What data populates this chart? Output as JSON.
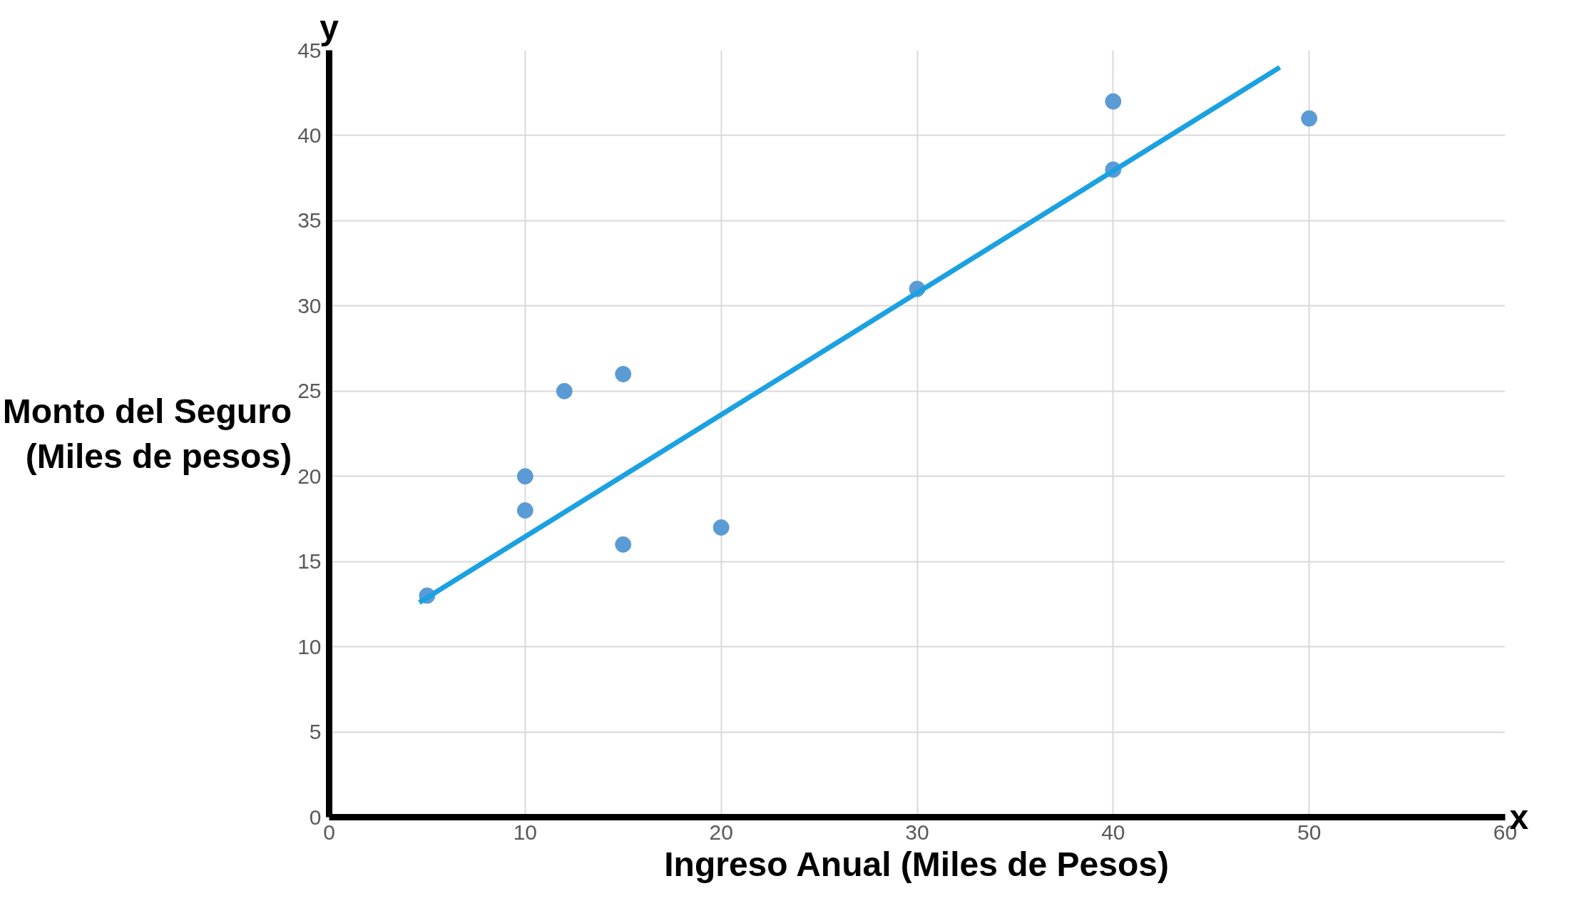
{
  "chart_data": {
    "type": "scatter",
    "xlabel": "Ingreso Anual (Miles de Pesos)",
    "ylabel": "Monto del Seguro (Miles de pesos)",
    "annotations": [
      "y",
      "x"
    ],
    "x": [
      5,
      10,
      10,
      12,
      15,
      15,
      20,
      30,
      40,
      40,
      50
    ],
    "series": [
      {
        "color": "#5b9bd5",
        "values": [
          13,
          20,
          18,
          25,
          26,
          16,
          17,
          31,
          42,
          38,
          41
        ]
      },
      {
        "type": "line",
        "marker": "none",
        "color": "#1ba1e2",
        "x": [
          4.6,
          48.5
        ],
        "values": [
          12.6,
          44
        ]
      }
    ],
    "xlim": [
      0,
      60
    ],
    "ylim": [
      0,
      45
    ],
    "xticks": [
      0,
      10,
      20,
      30,
      40,
      50,
      60
    ],
    "yticks": [
      0,
      5,
      10,
      15,
      20,
      25,
      30,
      35,
      40,
      45
    ],
    "grid": true,
    "marker": "circle",
    "line_style": "solid"
  }
}
